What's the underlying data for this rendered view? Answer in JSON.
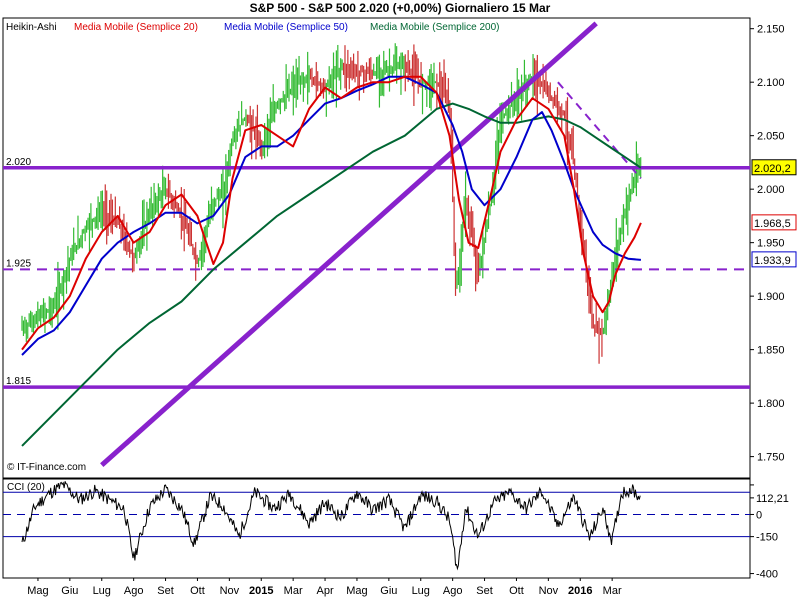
{
  "header": {
    "title": "S&P 500 - S&P 500    2.020 (+0,00%)    Giornaliero  15 Mar"
  },
  "legend": {
    "items": [
      {
        "label": "Heikin-Ashi",
        "color": "#000000"
      },
      {
        "label": "Media Mobile (Semplice 20)",
        "color": "#dd0000"
      },
      {
        "label": "Media Mobile (Semplice 50)",
        "color": "#0000cc"
      },
      {
        "label": "Media Mobile (Semplice 200)",
        "color": "#006633"
      }
    ]
  },
  "watermark": "© IT-Finance.com",
  "colors": {
    "up_candle": "#33bb33",
    "down_candle": "#cc3333",
    "ma20": "#dd0000",
    "ma50": "#0000cc",
    "ma200": "#006633",
    "levels": "#8822cc",
    "cci": "#000000",
    "cci_band": "#0000aa"
  },
  "chart_data": [
    {
      "type": "candlestick",
      "title": "S&P 500 - S&P 500",
      "ylim": [
        1730,
        2160
      ],
      "y_ticks": [
        1750,
        1800,
        1850,
        1900,
        1950,
        2000,
        2050,
        2100,
        2150
      ],
      "y_tick_labels": [
        "1.750",
        "1.800",
        "1.850",
        "1.900",
        "1.950",
        "2.000",
        "2.050",
        "2.100",
        "2.150"
      ],
      "x_labels": [
        "Mag",
        "Giu",
        "Lug",
        "Ago",
        "Set",
        "Ott",
        "Nov",
        "2015",
        "Mar",
        "Apr",
        "Mag",
        "Giu",
        "Lug",
        "Ago",
        "Set",
        "Ott",
        "Nov",
        "2016",
        "Mar"
      ],
      "x_label_bold": [
        false,
        false,
        false,
        false,
        false,
        false,
        false,
        true,
        false,
        false,
        false,
        false,
        false,
        false,
        false,
        false,
        false,
        true,
        false
      ],
      "x_label_pos": [
        0.5,
        1.5,
        2.5,
        3.5,
        4.5,
        5.5,
        6.5,
        7.5,
        8.5,
        9.5,
        10.5,
        11.5,
        12.5,
        13.5,
        14.5,
        15.5,
        16.5,
        17.5,
        18.5
      ],
      "horizontal_levels": [
        {
          "value": 2020,
          "label": "2.020",
          "style": "solid"
        },
        {
          "value": 1925,
          "label": "1.925",
          "style": "dashed"
        },
        {
          "value": 1815,
          "label": "1.815",
          "style": "solid"
        }
      ],
      "trendlines": [
        {
          "from": [
            2.5,
            1742
          ],
          "to": [
            18.0,
            2155
          ],
          "style": "solid"
        },
        {
          "from": [
            16.8,
            2100
          ],
          "to": [
            19.4,
            2010
          ],
          "style": "dashed"
        }
      ],
      "last_values": [
        {
          "name": "Heikin-Ashi",
          "value": 2020,
          "label": "2.020,2"
        },
        {
          "name": "Media Mobile (Semplice 20)",
          "value": 1968.5,
          "label": "1.968,5"
        },
        {
          "name": "Media Mobile (Semplice 50)",
          "value": 1933.9,
          "label": "1.933,9"
        }
      ],
      "price_anchors": {
        "x": [
          0.0,
          0.5,
          1.0,
          1.5,
          2.0,
          2.5,
          3.0,
          3.5,
          4.0,
          4.5,
          5.0,
          5.5,
          6.0,
          6.3,
          6.6,
          7.0,
          7.5,
          8.0,
          8.5,
          9.0,
          9.5,
          10.0,
          10.5,
          11.0,
          11.5,
          12.0,
          12.5,
          13.0,
          13.4,
          13.6,
          13.9,
          14.3,
          14.7,
          15.0,
          15.5,
          16.0,
          16.5,
          17.0,
          17.3,
          17.6,
          17.9,
          18.2,
          18.4,
          18.6,
          18.9,
          19.2,
          19.4
        ],
        "value": [
          1870,
          1880,
          1890,
          1935,
          1965,
          1980,
          1968,
          1935,
          1980,
          2000,
          1975,
          1930,
          1990,
          1995,
          2048,
          2068,
          2040,
          2080,
          2095,
          2105,
          2095,
          2115,
          2110,
          2108,
          2112,
          2115,
          2100,
          2100,
          2080,
          1900,
          1990,
          1920,
          1990,
          2065,
          2085,
          2105,
          2090,
          2070,
          2020,
          1945,
          1870,
          1865,
          1900,
          1940,
          1980,
          2010,
          2020
        ]
      },
      "ma_anchors": {
        "ma20": {
          "x": [
            0.0,
            0.5,
            1.0,
            1.5,
            2.0,
            2.5,
            3.0,
            3.5,
            4.0,
            4.5,
            5.0,
            5.5,
            6.0,
            6.3,
            6.6,
            7.0,
            7.5,
            8.0,
            8.5,
            9.0,
            9.5,
            10.0,
            10.5,
            11.0,
            11.5,
            12.0,
            12.5,
            13.0,
            13.4,
            13.7,
            14.0,
            14.3,
            14.7,
            15.0,
            15.5,
            16.0,
            16.5,
            17.0,
            17.3,
            17.6,
            17.9,
            18.2,
            18.4,
            18.6,
            18.9,
            19.2,
            19.4
          ],
          "value": [
            1850,
            1870,
            1880,
            1900,
            1935,
            1960,
            1975,
            1950,
            1960,
            1985,
            1995,
            1975,
            1930,
            1950,
            2010,
            2055,
            2060,
            2050,
            2040,
            2075,
            2095,
            2085,
            2095,
            2100,
            2100,
            2105,
            2105,
            2090,
            2050,
            1990,
            1950,
            1945,
            1995,
            2035,
            2065,
            2085,
            2075,
            2050,
            2000,
            1940,
            1900,
            1885,
            1895,
            1920,
            1940,
            1955,
            1968.5
          ]
        },
        "ma50": {
          "x": [
            0.0,
            0.5,
            1.0,
            1.5,
            2.0,
            2.5,
            3.0,
            3.5,
            4.0,
            4.5,
            5.0,
            5.5,
            6.0,
            6.5,
            7.0,
            7.5,
            8.0,
            8.5,
            9.0,
            9.5,
            10.0,
            10.5,
            11.0,
            11.5,
            12.0,
            12.5,
            13.0,
            13.5,
            13.8,
            14.1,
            14.5,
            15.0,
            15.5,
            16.0,
            16.3,
            16.6,
            17.0,
            17.3,
            17.6,
            17.9,
            18.2,
            18.6,
            19.0,
            19.4
          ],
          "value": [
            1845,
            1860,
            1868,
            1885,
            1910,
            1935,
            1950,
            1960,
            1968,
            1978,
            1978,
            1968,
            1975,
            1995,
            2030,
            2040,
            2040,
            2050,
            2065,
            2080,
            2085,
            2092,
            2098,
            2105,
            2105,
            2098,
            2090,
            2060,
            2035,
            2000,
            1985,
            2000,
            2030,
            2065,
            2072,
            2055,
            2025,
            2000,
            1980,
            1960,
            1948,
            1940,
            1935,
            1933.9
          ]
        },
        "ma200": {
          "x": [
            0.0,
            1.0,
            2.0,
            3.0,
            4.0,
            5.0,
            6.0,
            7.0,
            8.0,
            9.0,
            10.0,
            11.0,
            12.0,
            13.0,
            13.5,
            14.0,
            14.5,
            15.0,
            15.5,
            16.0,
            16.5,
            17.0,
            17.5,
            18.0,
            18.5,
            19.0,
            19.4
          ],
          "value": [
            1760,
            1790,
            1820,
            1850,
            1875,
            1895,
            1925,
            1950,
            1975,
            1995,
            2015,
            2035,
            2050,
            2075,
            2080,
            2075,
            2068,
            2062,
            2062,
            2065,
            2068,
            2065,
            2058,
            2048,
            2038,
            2028,
            2020
          ]
        }
      }
    },
    {
      "type": "line",
      "title": "CCI (20)",
      "ylim": [
        -430,
        240
      ],
      "y_ticks": [
        200,
        112.21,
        0,
        -150,
        -400
      ],
      "y_tick_labels": [
        "",
        "112,21",
        "0",
        "-150",
        "-400"
      ],
      "bands": [
        {
          "value": 150,
          "style": "solid"
        },
        {
          "value": 0,
          "style": "dashed"
        },
        {
          "value": -150,
          "style": "solid"
        }
      ],
      "last_value": 112.21,
      "anchors": {
        "x": [
          0.0,
          0.4,
          0.9,
          1.3,
          1.8,
          2.3,
          2.8,
          3.2,
          3.5,
          4.0,
          4.5,
          5.0,
          5.4,
          5.9,
          6.3,
          6.8,
          7.3,
          7.9,
          8.4,
          9.0,
          9.5,
          10.0,
          10.5,
          11.0,
          11.5,
          12.0,
          12.5,
          13.0,
          13.4,
          13.65,
          13.9,
          14.3,
          14.8,
          15.3,
          15.8,
          16.3,
          16.8,
          17.3,
          17.8,
          18.2,
          18.5,
          18.8,
          19.1,
          19.4
        ],
        "value": [
          -200,
          50,
          150,
          200,
          100,
          160,
          90,
          40,
          -300,
          50,
          170,
          40,
          -200,
          120,
          60,
          -150,
          150,
          40,
          140,
          -60,
          80,
          -20,
          150,
          30,
          100,
          -100,
          130,
          90,
          -40,
          -380,
          50,
          -150,
          80,
          150,
          40,
          160,
          -80,
          120,
          -160,
          40,
          -180,
          150,
          170,
          112.21
        ]
      }
    }
  ]
}
